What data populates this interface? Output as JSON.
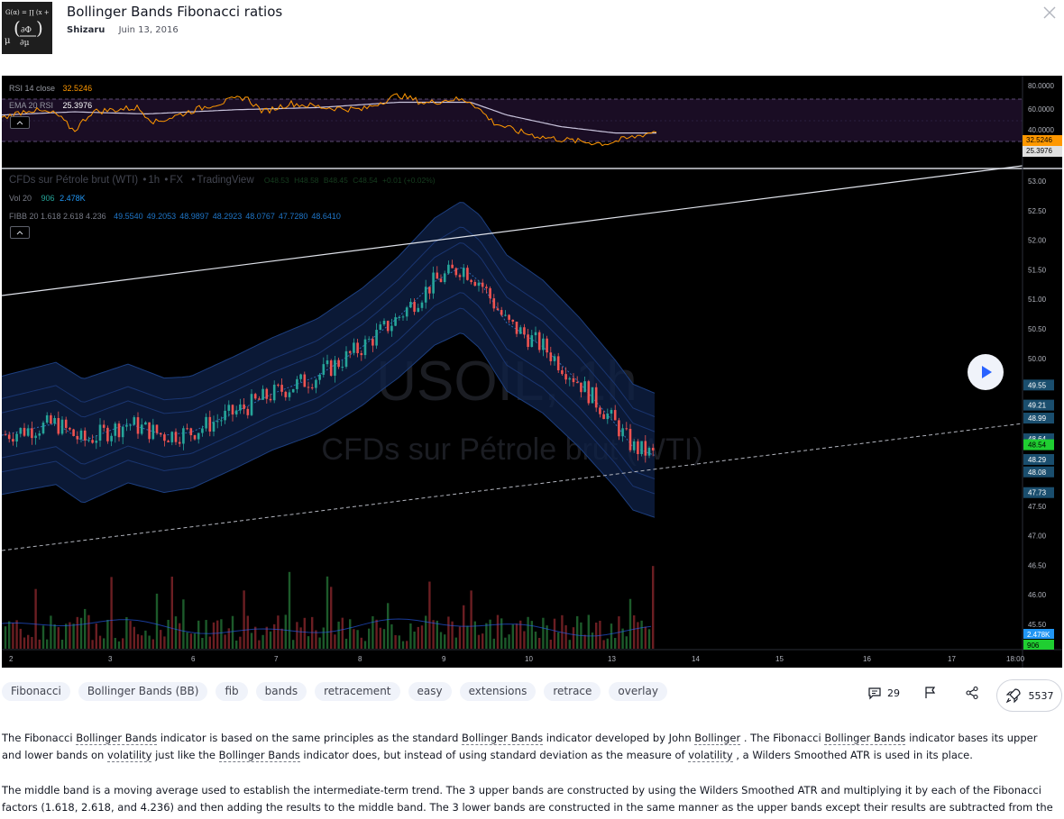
{
  "idea": {
    "title": "Bollinger Bands Fibonacci ratios",
    "author": "Shizaru",
    "date": "Juin 13, 2016",
    "avatar_text": "G(α) = ∏ (x +"
  },
  "chart": {
    "rsi": {
      "label": "RSI 14 close",
      "value": "32.5246",
      "ema_label": "EMA 20 RSI",
      "ema_value": "25.3976",
      "axis": [
        "80.0000",
        "60.0000",
        "40.0000"
      ],
      "badge_rsi": "32.5246",
      "badge_ema": "25.3976"
    },
    "symbol": {
      "name": "CFDs sur Pétrole brut (WTI)",
      "interval": "1h",
      "exchange": "FX",
      "source": "TradingView",
      "o_label": "O",
      "o": "48.53",
      "h_label": "H",
      "h": "48.58",
      "b_label": "B",
      "b": "48.45",
      "c_label": "C",
      "c": "48.54",
      "change": "+0.01 (+0.02%)"
    },
    "vol": {
      "label": "Vol 20",
      "value": "906",
      "ma": "2.478K"
    },
    "fibb": {
      "label": "FIBB 20 1.618 2.618 4.236",
      "values": [
        "49.5540",
        "49.2053",
        "48.9897",
        "48.2923",
        "48.0767",
        "47.7280",
        "48.6410"
      ]
    },
    "watermark": {
      "symbol": "USOIL, 1h",
      "name": "CFDs sur Pétrole brut (WTI)"
    },
    "price_axis": [
      "53.00",
      "52.50",
      "52.00",
      "51.50",
      "51.00",
      "50.50",
      "50.00",
      "47.50",
      "47.00",
      "46.50",
      "46.00",
      "45.50"
    ],
    "price_badges": [
      {
        "label": "49.55",
        "value": 49.55,
        "color": "#1a4e6e"
      },
      {
        "label": "49.21",
        "value": 49.21,
        "color": "#1a4e6e"
      },
      {
        "label": "48.99",
        "value": 48.99,
        "color": "#1a4e6e"
      },
      {
        "label": "48.64",
        "value": 48.64,
        "color": "#1a4e6e"
      },
      {
        "label": "48.54",
        "value": 48.54,
        "color": "#1fce31"
      },
      {
        "label": "48.29",
        "value": 48.29,
        "color": "#1a4e6e"
      },
      {
        "label": "48.08",
        "value": 48.08,
        "color": "#1a4e6e"
      },
      {
        "label": "47.73",
        "value": 47.73,
        "color": "#1a4e6e"
      }
    ],
    "vol_badges": [
      "2.478K",
      "906"
    ],
    "time_axis": [
      "2",
      "3",
      "6",
      "7",
      "8",
      "9",
      "10",
      "13",
      "14",
      "15",
      "16",
      "17",
      "18:00"
    ],
    "colors": {
      "up": "#26a69a",
      "down": "#ef5350",
      "band": "#16326a",
      "rsi": "#ff9800",
      "ema": "#c9c4dc"
    }
  },
  "tags": [
    "Fibonacci",
    "Bollinger Bands (BB)",
    "fib",
    "bands",
    "retracement",
    "easy",
    "extensions",
    "retrace",
    "overlay"
  ],
  "actions": {
    "comments": "29",
    "boosts": "5537"
  },
  "description": {
    "p1": [
      "The Fibonacci ",
      "Bollinger Bands",
      " indicator is based on the same principles as the standard ",
      "Bollinger Bands",
      " indicator developed by John ",
      "Bollinger",
      " . The Fibonacci ",
      "Bollinger Bands",
      " indicator bases its upper and lower bands on ",
      "volatility",
      " just like the ",
      "Bollinger Bands",
      " indicator does, but instead of using standard deviation as the measure of ",
      "volatility",
      " , a Wilders Smoothed ATR is used in its place."
    ],
    "p2": "The middle band is a moving average used to establish the intermediate-term trend. The 3 upper bands are constructed by using the Wilders Smoothed ATR and multiplying it by each of the Fibonacci factors (1.618, 2.618, and 4.236) and then adding the results to the middle band. The 3 lower bands are constructed in the same manner as the upper bands except their results are subtracted from the middle band."
  }
}
